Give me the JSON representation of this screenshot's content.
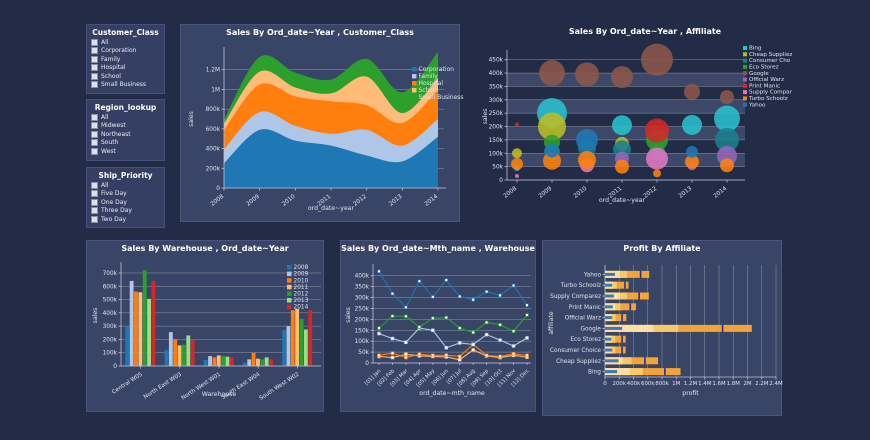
{
  "filters": [
    {
      "title": "Customer_Class",
      "options": [
        "All",
        "Corporation",
        "Family",
        "Hospital",
        "School",
        "Small Business"
      ]
    },
    {
      "title": "Region_lookup",
      "options": [
        "All",
        "Midwest",
        "Northeast",
        "South",
        "West"
      ]
    },
    {
      "title": "Ship_Priority",
      "options": [
        "All",
        "Five Day",
        "One Day",
        "Three Day",
        "Two Day"
      ]
    }
  ],
  "theme": {
    "page_bg": "#232c47",
    "panel_bg": "#394566",
    "panel_border": "#4a547c",
    "grid_color": "#ffffff",
    "text_color": "#dfe4f0",
    "band_light": "#3d4869",
    "bullet_pale": "#fbdfa3",
    "bullet_mid": "#f9c968",
    "bullet_strong": "#f2a33a",
    "bullet_measure": "#3d7ab5",
    "bullet_target": "#2d2f8f"
  },
  "chart_data": [
    {
      "type": "area",
      "title": "Sales By Ord_date~Year , Customer_Class",
      "xlabel": "ord_date~year",
      "ylabel": "sales",
      "x": [
        "2008",
        "2009",
        "2010",
        "2011",
        "2012",
        "2013",
        "2014"
      ],
      "ylim": [
        0,
        1400000
      ],
      "yticks": {
        "values": [
          0,
          200000,
          400000,
          600000,
          800000,
          1000000,
          1200000
        ],
        "labels": [
          "0",
          "200k",
          "400k",
          "600k",
          "800k",
          "1M",
          "1.2M"
        ]
      },
      "legend_position": "top-right",
      "grid": true,
      "series": [
        {
          "name": "Corporation",
          "color": "#1f77b4",
          "values": [
            250000,
            590000,
            480000,
            430000,
            330000,
            270000,
            520000
          ]
        },
        {
          "name": "Family",
          "color": "#aec7e8",
          "values": [
            140000,
            180000,
            150000,
            120000,
            260000,
            160000,
            180000
          ]
        },
        {
          "name": "Hospital",
          "color": "#ff7f0e",
          "values": [
            200000,
            280000,
            300000,
            330000,
            250000,
            230000,
            300000
          ]
        },
        {
          "name": "School",
          "color": "#ffbb78",
          "values": [
            60000,
            130000,
            90000,
            80000,
            290000,
            100000,
            120000
          ]
        },
        {
          "name": "Small Business",
          "color": "#2ca02c",
          "values": [
            40000,
            150000,
            150000,
            140000,
            180000,
            210000,
            260000
          ]
        }
      ]
    },
    {
      "type": "bubble",
      "title": "Sales By Ord_date~Year , Affiliate",
      "xlabel": "ord_date~year",
      "ylabel": "sales",
      "x": [
        "2008",
        "2009",
        "2010",
        "2011",
        "2012",
        "2013",
        "2014"
      ],
      "ylim": [
        0,
        475000
      ],
      "yticks": {
        "values": [
          0,
          50000,
          100000,
          150000,
          200000,
          250000,
          300000,
          350000,
          400000,
          450000
        ],
        "labels": [
          "0",
          "50k",
          "100k",
          "150k",
          "200k",
          "250k",
          "300k",
          "350k",
          "400k",
          "450k"
        ]
      },
      "legend_position": "right",
      "grid": true,
      "banded": true,
      "series": [
        {
          "name": "Bing",
          "legend_label": "Bing",
          "color": "#29c0cf",
          "points": [
            {
              "x": "2008",
              "y": 45000,
              "r": 3
            },
            {
              "x": "2009",
              "y": 250000,
              "r": 15
            },
            {
              "x": "2011",
              "y": 205000,
              "r": 10
            },
            {
              "x": "2013",
              "y": 206000,
              "r": 10
            },
            {
              "x": "2014",
              "y": 230000,
              "r": 13
            }
          ]
        },
        {
          "name": "Cheap Suppliez",
          "legend_label": "Cheap Suppliez",
          "color": "#bcbd22",
          "points": [
            {
              "x": "2008",
              "y": 100000,
              "r": 5
            },
            {
              "x": "2009",
              "y": 200000,
              "r": 14
            },
            {
              "x": "2011",
              "y": 135000,
              "r": 7
            }
          ]
        },
        {
          "name": "Consumer Choice",
          "legend_label": "Consumer Cho",
          "color": "#1b7f8f",
          "points": [
            {
              "x": "2009",
              "y": 105000,
              "r": 8
            },
            {
              "x": "2010",
              "y": 120000,
              "r": 9
            },
            {
              "x": "2011",
              "y": 115000,
              "r": 9
            },
            {
              "x": "2012",
              "y": 105000,
              "r": 8
            },
            {
              "x": "2014",
              "y": 150000,
              "r": 12
            }
          ]
        },
        {
          "name": "Eco Storez",
          "legend_label": "Eco Storez",
          "color": "#2ca02c",
          "points": [
            {
              "x": "2009",
              "y": 140000,
              "r": 8
            },
            {
              "x": "2012",
              "y": 150000,
              "r": 11
            }
          ]
        },
        {
          "name": "Google",
          "legend_label": "Google",
          "color": "#8c564b",
          "points": [
            {
              "x": "2009",
              "y": 400000,
              "r": 13
            },
            {
              "x": "2010",
              "y": 395000,
              "r": 12
            },
            {
              "x": "2011",
              "y": 385000,
              "r": 11
            },
            {
              "x": "2012",
              "y": 450000,
              "r": 16
            },
            {
              "x": "2013",
              "y": 330000,
              "r": 8
            },
            {
              "x": "2014",
              "y": 310000,
              "r": 7
            }
          ]
        },
        {
          "name": "Official Warz",
          "legend_label": "Official Warz",
          "color": "#9467bd",
          "points": [
            {
              "x": "2011",
              "y": 80000,
              "r": 7
            },
            {
              "x": "2013",
              "y": 55000,
              "r": 5
            },
            {
              "x": "2014",
              "y": 90000,
              "r": 10
            }
          ]
        },
        {
          "name": "Print Manic",
          "legend_label": "Print Manic",
          "color": "#d62728",
          "points": [
            {
              "x": "2008",
              "y": 208000,
              "r": 2
            },
            {
              "x": "2012",
              "y": 185000,
              "r": 12
            }
          ]
        },
        {
          "name": "Supply Comparez",
          "legend_label": "Supply Compar",
          "color": "#e377c2",
          "points": [
            {
              "x": "2008",
              "y": 15000,
              "r": 2
            },
            {
              "x": "2010",
              "y": 55000,
              "r": 7
            },
            {
              "x": "2012",
              "y": 80000,
              "r": 11
            }
          ]
        },
        {
          "name": "Turbo Schoolz",
          "legend_label": "Turbo Schoolz",
          "color": "#ff7f0e",
          "points": [
            {
              "x": "2008",
              "y": 60000,
              "r": 6
            },
            {
              "x": "2009",
              "y": 72000,
              "r": 9
            },
            {
              "x": "2010",
              "y": 75000,
              "r": 9
            },
            {
              "x": "2011",
              "y": 50000,
              "r": 7
            },
            {
              "x": "2012",
              "y": 25000,
              "r": 4
            },
            {
              "x": "2013",
              "y": 68000,
              "r": 7
            },
            {
              "x": "2014",
              "y": 55000,
              "r": 7
            }
          ]
        },
        {
          "name": "Yahoo",
          "legend_label": "Yahoo",
          "color": "#1f77b4",
          "points": [
            {
              "x": "2009",
              "y": 110000,
              "r": 7
            },
            {
              "x": "2010",
              "y": 150000,
              "r": 11
            },
            {
              "x": "2013",
              "y": 105000,
              "r": 6
            }
          ]
        }
      ]
    },
    {
      "type": "bar",
      "title": "Sales By Warehouse , Ord_date~Year",
      "xlabel": "Warehouse",
      "ylabel": "sales",
      "categories": [
        "Central W05",
        "North East W03",
        "North West W01",
        "South East W04",
        "South West W02"
      ],
      "ylim": [
        0,
        760000
      ],
      "yticks": {
        "values": [
          0,
          100000,
          200000,
          300000,
          400000,
          500000,
          600000,
          700000
        ],
        "labels": [
          "0",
          "100k",
          "200k",
          "300k",
          "400k",
          "500k",
          "600k",
          "700k"
        ]
      },
      "legend_position": "top-right",
      "grid": true,
      "series": [
        {
          "name": "2008",
          "color": "#1f77b4",
          "values": [
            300000,
            120000,
            45000,
            25000,
            270000
          ]
        },
        {
          "name": "2009",
          "color": "#aec7e8",
          "values": [
            640000,
            255000,
            75000,
            50000,
            300000
          ]
        },
        {
          "name": "2010",
          "color": "#ff7f0e",
          "values": [
            560000,
            200000,
            65000,
            100000,
            420000
          ]
        },
        {
          "name": "2011",
          "color": "#ffbb78",
          "values": [
            555000,
            155000,
            80000,
            55000,
            430000
          ]
        },
        {
          "name": "2012",
          "color": "#2ca02c",
          "values": [
            720000,
            160000,
            75000,
            50000,
            355000
          ]
        },
        {
          "name": "2013",
          "color": "#98df8a",
          "values": [
            505000,
            230000,
            70000,
            65000,
            275000
          ]
        },
        {
          "name": "2014",
          "color": "#d62728",
          "values": [
            640000,
            200000,
            65000,
            50000,
            420000
          ]
        }
      ]
    },
    {
      "type": "line",
      "title": "Sales By Ord_date~Mth_name , Warehouse",
      "xlabel": "ord_date~mth_name",
      "ylabel": "sales",
      "categories": [
        "[01] Jan",
        "[02] Feb",
        "[03] Mar",
        "[04] Apr",
        "[05] May",
        "[06] Jun",
        "[07] Jul",
        "[08] Aug",
        "[09] Sep",
        "[10] Oct",
        "[11] Nov",
        "[12] Dec"
      ],
      "ylim": [
        0,
        440000
      ],
      "yticks": {
        "values": [
          0,
          50000,
          100000,
          150000,
          200000,
          250000,
          300000,
          350000,
          400000
        ],
        "labels": [
          "0",
          "50k",
          "100k",
          "150k",
          "200k",
          "250k",
          "300k",
          "350k",
          "400k"
        ]
      },
      "grid": true,
      "legend_position": "none",
      "series": [
        {
          "name": "South East W04",
          "color": "#ffbb78",
          "values": [
            30000,
            25000,
            40000,
            33000,
            30000,
            28000,
            15000,
            60000,
            32000,
            25000,
            35000,
            27000
          ]
        },
        {
          "name": "North West W01",
          "color": "#ff7f0e",
          "values": [
            35000,
            45000,
            25000,
            40000,
            35000,
            36000,
            30000,
            85000,
            35000,
            30000,
            42000,
            35000
          ]
        },
        {
          "name": "North East W03",
          "color": "#aec7e8",
          "values": [
            135000,
            112000,
            95000,
            160000,
            150000,
            70000,
            92000,
            85000,
            130000,
            105000,
            78000,
            115000
          ]
        },
        {
          "name": "South West W02",
          "color": "#2ca02c",
          "values": [
            160000,
            215000,
            214000,
            165000,
            205000,
            208000,
            160000,
            140000,
            186000,
            175000,
            146000,
            220000
          ]
        },
        {
          "name": "Central W05",
          "color": "#1f77b4",
          "values": [
            420000,
            318000,
            255000,
            375000,
            303000,
            380000,
            305000,
            290000,
            327000,
            310000,
            355000,
            265000
          ]
        }
      ]
    },
    {
      "type": "bullet",
      "title": "Profit By Affiliate",
      "xlabel": "profit",
      "ylabel": "affiliate",
      "xlim": [
        0,
        2400000
      ],
      "xticks": {
        "values": [
          0,
          200000,
          400000,
          600000,
          800000,
          1000000,
          1200000,
          1400000,
          1600000,
          1800000,
          2000000,
          2200000,
          2400000
        ],
        "labels": [
          "0",
          "200k",
          "400k",
          "600k",
          "800k",
          "1M",
          "1.2M",
          "1.4M",
          "1.6M",
          "1.8M",
          "2M",
          "2.2M",
          "2.4M"
        ]
      },
      "grid": true,
      "rows": [
        {
          "name": "Yahoo",
          "total": 620000,
          "measure": 140000,
          "target": 500000
        },
        {
          "name": "Turbo Schoolz",
          "total": 330000,
          "measure": 100000,
          "target": 280000
        },
        {
          "name": "Supply Comparez",
          "total": 615000,
          "measure": 125000,
          "target": 480000
        },
        {
          "name": "Print Manic",
          "total": 435000,
          "measure": 110000,
          "target": 355000
        },
        {
          "name": "Official Warz",
          "total": 300000,
          "measure": 100000,
          "target": 240000
        },
        {
          "name": "Google",
          "total": 2060000,
          "measure": 240000,
          "target": 1650000
        },
        {
          "name": "Eco Storez",
          "total": 290000,
          "measure": 90000,
          "target": 240000
        },
        {
          "name": "Consumer Choice",
          "total": 290000,
          "measure": 100000,
          "target": 240000
        },
        {
          "name": "Cheap Suppliez",
          "total": 745000,
          "measure": 190000,
          "target": 560000
        },
        {
          "name": "Bing",
          "total": 1060000,
          "measure": 170000,
          "target": 840000
        }
      ]
    }
  ]
}
